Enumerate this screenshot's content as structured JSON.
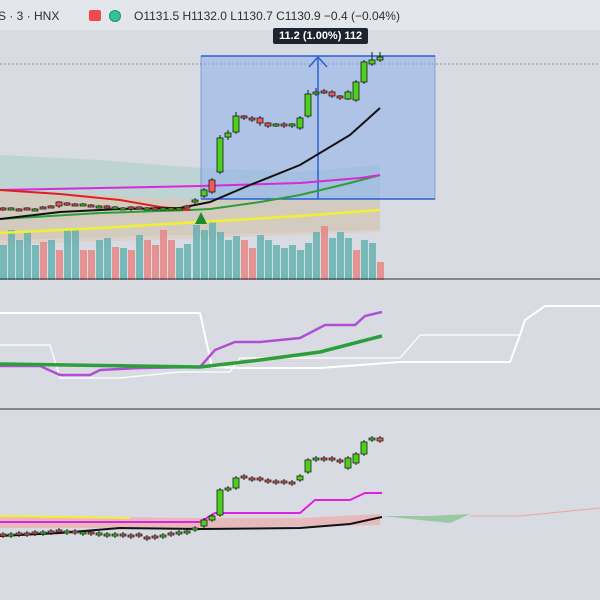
{
  "header": {
    "symbol_text": "S · 3 · HNX",
    "ohlc_text": "O1131.5 H1132.0 L1130.7 C1130.9 −0.4 (−0.04%)",
    "icons": [
      "flag-icon",
      "eye-icon"
    ]
  },
  "measure": {
    "label": "11.2 (1.00%) 112"
  },
  "colors": {
    "up": "#4cd11a",
    "down": "#f25a5a",
    "ma_black": "#111111",
    "ma_red": "#e02020",
    "ma_magenta": "#d62bd6",
    "ma_green": "#2d9e3a",
    "ma_yellow": "#f0f030",
    "measure_box": "#8fb0ea"
  }
}
